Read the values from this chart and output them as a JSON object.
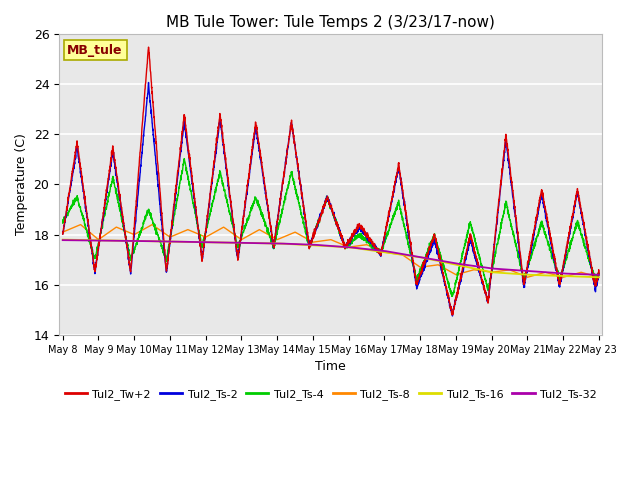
{
  "title": "MB Tule Tower: Tule Temps 2 (3/23/17-now)",
  "xlabel": "Time",
  "ylabel": "Temperature (C)",
  "ylim": [
    14,
    26
  ],
  "background_color": "#ffffff",
  "plot_bg_color": "#e8e8e8",
  "annotation_text": "MB_tule",
  "annotation_color": "#880000",
  "annotation_bg": "#ffff99",
  "annotation_border": "#aaaa00",
  "series_colors": {
    "Tul2_Tw+2": "#dd0000",
    "Tul2_Ts-2": "#0000dd",
    "Tul2_Ts-4": "#00cc00",
    "Tul2_Ts-8": "#ff8800",
    "Tul2_Ts-16": "#dddd00",
    "Tul2_Ts-32": "#aa00aa"
  },
  "xtick_labels": [
    "May 8",
    "May 9",
    "May 10",
    "May 11",
    "May 12",
    "May 13",
    "May 14",
    "May 15",
    "May 16",
    "May 17",
    "May 18",
    "May 19",
    "May 20",
    "May 21",
    "May 22",
    "May 23"
  ],
  "ytick_labels": [
    "14",
    "16",
    "18",
    "20",
    "22",
    "24",
    "26"
  ],
  "ytick_vals": [
    14,
    16,
    18,
    20,
    22,
    24,
    26
  ]
}
